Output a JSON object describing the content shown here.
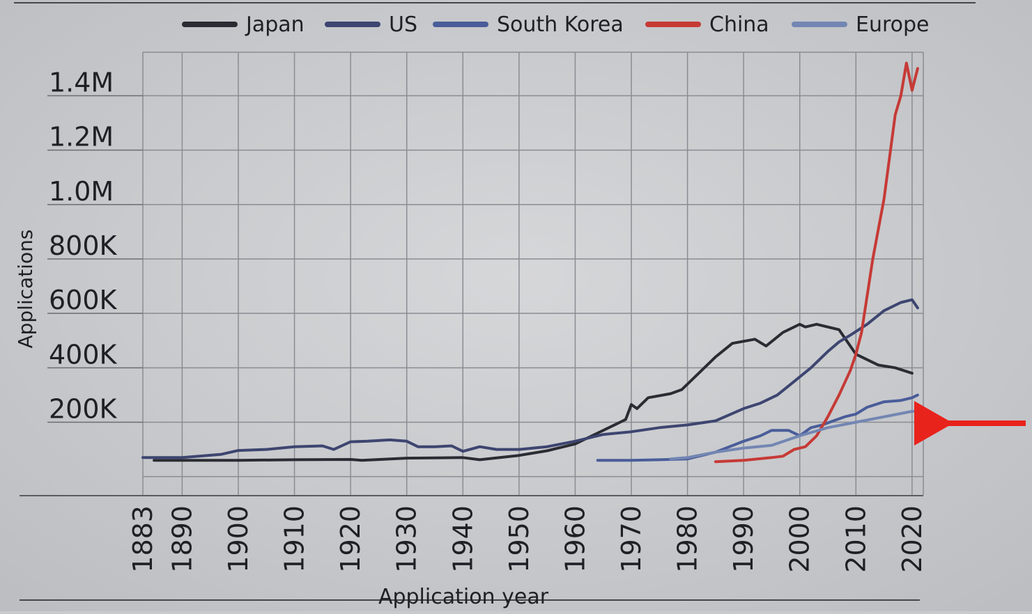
{
  "chart_data": {
    "type": "line",
    "xlabel": "Application year",
    "ylabel": "Applications",
    "x_ticks": [
      "1883",
      "1890",
      "1900",
      "1910",
      "1920",
      "1930",
      "1940",
      "1950",
      "1960",
      "1970",
      "1980",
      "1990",
      "2000",
      "2010",
      "2020"
    ],
    "y_ticks": [
      "200K",
      "400K",
      "600K",
      "800K",
      "1.0M",
      "1.2M",
      "1.4M"
    ],
    "xlim": [
      1883,
      2022
    ],
    "ylim": [
      -70000,
      1560000
    ],
    "grid": true,
    "legend_position": "top",
    "series": [
      {
        "name": "Japan",
        "color": "#2a2c33",
        "points": [
          [
            1885,
            60000
          ],
          [
            1900,
            60000
          ],
          [
            1910,
            62000
          ],
          [
            1920,
            63000
          ],
          [
            1922,
            60000
          ],
          [
            1930,
            68000
          ],
          [
            1940,
            70000
          ],
          [
            1943,
            62000
          ],
          [
            1950,
            78000
          ],
          [
            1955,
            95000
          ],
          [
            1960,
            120000
          ],
          [
            1963,
            150000
          ],
          [
            1967,
            190000
          ],
          [
            1969,
            210000
          ],
          [
            1970,
            265000
          ],
          [
            1971,
            250000
          ],
          [
            1973,
            290000
          ],
          [
            1977,
            305000
          ],
          [
            1979,
            320000
          ],
          [
            1981,
            360000
          ],
          [
            1985,
            440000
          ],
          [
            1988,
            490000
          ],
          [
            1992,
            505000
          ],
          [
            1994,
            480000
          ],
          [
            1997,
            530000
          ],
          [
            2000,
            560000
          ],
          [
            2001,
            550000
          ],
          [
            2003,
            560000
          ],
          [
            2005,
            550000
          ],
          [
            2007,
            540000
          ],
          [
            2010,
            450000
          ],
          [
            2014,
            410000
          ],
          [
            2017,
            400000
          ],
          [
            2020,
            380000
          ]
        ]
      },
      {
        "name": "US",
        "color": "#3d4570",
        "points": [
          [
            1883,
            70000
          ],
          [
            1890,
            70000
          ],
          [
            1897,
            82000
          ],
          [
            1900,
            96000
          ],
          [
            1905,
            100000
          ],
          [
            1910,
            110000
          ],
          [
            1915,
            113000
          ],
          [
            1917,
            100000
          ],
          [
            1920,
            128000
          ],
          [
            1923,
            130000
          ],
          [
            1927,
            135000
          ],
          [
            1930,
            130000
          ],
          [
            1932,
            110000
          ],
          [
            1935,
            110000
          ],
          [
            1938,
            113000
          ],
          [
            1940,
            93000
          ],
          [
            1943,
            110000
          ],
          [
            1946,
            100000
          ],
          [
            1950,
            100000
          ],
          [
            1955,
            110000
          ],
          [
            1960,
            130000
          ],
          [
            1965,
            155000
          ],
          [
            1970,
            165000
          ],
          [
            1975,
            180000
          ],
          [
            1980,
            190000
          ],
          [
            1985,
            205000
          ],
          [
            1990,
            250000
          ],
          [
            1993,
            270000
          ],
          [
            1996,
            300000
          ],
          [
            1999,
            350000
          ],
          [
            2002,
            400000
          ],
          [
            2005,
            460000
          ],
          [
            2007,
            495000
          ],
          [
            2009,
            520000
          ],
          [
            2012,
            560000
          ],
          [
            2015,
            610000
          ],
          [
            2018,
            640000
          ],
          [
            2020,
            650000
          ],
          [
            2021,
            620000
          ]
        ]
      },
      {
        "name": "South Korea",
        "color": "#4a5d9a",
        "points": [
          [
            1964,
            60000
          ],
          [
            1970,
            60000
          ],
          [
            1975,
            62000
          ],
          [
            1980,
            65000
          ],
          [
            1985,
            90000
          ],
          [
            1990,
            130000
          ],
          [
            1993,
            150000
          ],
          [
            1995,
            170000
          ],
          [
            1998,
            170000
          ],
          [
            2000,
            150000
          ],
          [
            2002,
            180000
          ],
          [
            2004,
            190000
          ],
          [
            2006,
            205000
          ],
          [
            2008,
            220000
          ],
          [
            2010,
            230000
          ],
          [
            2012,
            255000
          ],
          [
            2015,
            275000
          ],
          [
            2018,
            280000
          ],
          [
            2020,
            290000
          ],
          [
            2021,
            300000
          ]
        ]
      },
      {
        "name": "China",
        "color": "#c63a36",
        "points": [
          [
            1985,
            55000
          ],
          [
            1990,
            60000
          ],
          [
            1995,
            70000
          ],
          [
            1997,
            75000
          ],
          [
            1999,
            100000
          ],
          [
            2001,
            110000
          ],
          [
            2003,
            150000
          ],
          [
            2005,
            220000
          ],
          [
            2007,
            300000
          ],
          [
            2009,
            390000
          ],
          [
            2010,
            450000
          ],
          [
            2011,
            530000
          ],
          [
            2013,
            800000
          ],
          [
            2015,
            1020000
          ],
          [
            2017,
            1330000
          ],
          [
            2018,
            1400000
          ],
          [
            2019,
            1520000
          ],
          [
            2020,
            1420000
          ],
          [
            2021,
            1500000
          ]
        ]
      },
      {
        "name": "Europe",
        "color": "#7386b3",
        "points": [
          [
            1977,
            65000
          ],
          [
            1980,
            70000
          ],
          [
            1985,
            90000
          ],
          [
            1990,
            105000
          ],
          [
            1995,
            115000
          ],
          [
            2000,
            150000
          ],
          [
            2005,
            180000
          ],
          [
            2010,
            200000
          ],
          [
            2015,
            220000
          ],
          [
            2020,
            240000
          ],
          [
            2021,
            240000
          ]
        ]
      }
    ]
  },
  "annotations": {
    "arrow_color": "#e8231c"
  }
}
